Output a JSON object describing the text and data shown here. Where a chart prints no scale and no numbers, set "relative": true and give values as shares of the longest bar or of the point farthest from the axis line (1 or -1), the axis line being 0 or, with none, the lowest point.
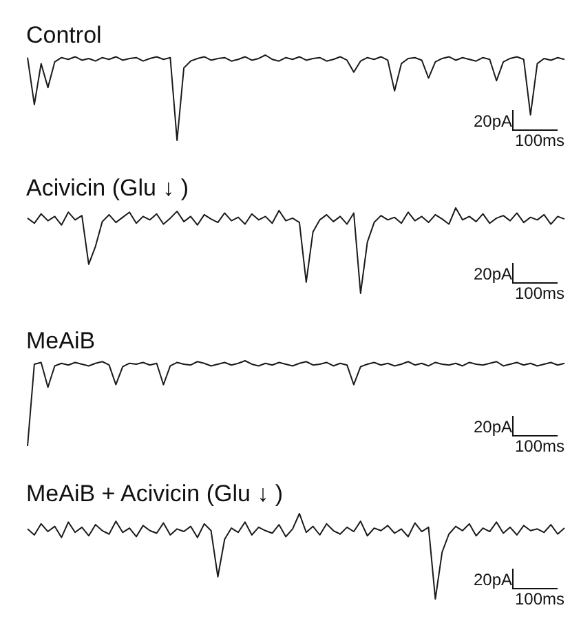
{
  "chart_data": [
    {
      "type": "line",
      "title": "Control",
      "relative": true,
      "annotations": [
        "20pA",
        "100ms"
      ],
      "categories": [
        null,
        null,
        null,
        null,
        null,
        null,
        null,
        null,
        null,
        null,
        null,
        null,
        null,
        null,
        null,
        null,
        null,
        null,
        null,
        null,
        null,
        null,
        null,
        null,
        null,
        null,
        null,
        null,
        null,
        null,
        null,
        null,
        null,
        null,
        null,
        null,
        null,
        null,
        null,
        null,
        null,
        null,
        null,
        null,
        null,
        null,
        null,
        null,
        null,
        null,
        null,
        null,
        null,
        null,
        null,
        null,
        null,
        null,
        null,
        null,
        null,
        null,
        null,
        null,
        null,
        null,
        null,
        null,
        null,
        null,
        null,
        null,
        null,
        null,
        null,
        null,
        null,
        null,
        null,
        null
      ],
      "series": [
        {
          "color": "#1a1a1a",
          "values": [
            0.97,
            0.42,
            0.9,
            0.62,
            0.92,
            0.97,
            0.95,
            0.98,
            0.94,
            0.96,
            0.93,
            0.97,
            0.95,
            0.98,
            0.94,
            0.96,
            0.97,
            0.93,
            0.96,
            0.98,
            0.95,
            0.97,
            0,
            0.85,
            0.93,
            0.96,
            0.98,
            0.94,
            0.96,
            0.97,
            0.93,
            0.95,
            0.98,
            0.94,
            0.96,
            1,
            0.95,
            0.93,
            0.97,
            0.95,
            0.98,
            0.94,
            0.96,
            0.97,
            0.93,
            0.95,
            0.98,
            0.94,
            0.8,
            0.93,
            0.97,
            0.95,
            0.98,
            0.94,
            0.58,
            0.9,
            0.96,
            0.97,
            0.94,
            0.73,
            0.92,
            0.96,
            0.98,
            0.94,
            0.97,
            0.95,
            0.93,
            0.97,
            0.95,
            0.7,
            0.92,
            0.96,
            0.98,
            0.95,
            0.3,
            0.9,
            0.96,
            0.94,
            0.97,
            0.95
          ]
        }
      ]
    },
    {
      "type": "line",
      "title": "Acivicin (Glu ↓ )",
      "relative": true,
      "annotations": [
        "20pA",
        "100ms"
      ],
      "categories": [
        null,
        null,
        null,
        null,
        null,
        null,
        null,
        null,
        null,
        null,
        null,
        null,
        null,
        null,
        null,
        null,
        null,
        null,
        null,
        null,
        null,
        null,
        null,
        null,
        null,
        null,
        null,
        null,
        null,
        null,
        null,
        null,
        null,
        null,
        null,
        null,
        null,
        null,
        null,
        null,
        null,
        null,
        null,
        null,
        null,
        null,
        null,
        null,
        null,
        null,
        null,
        null,
        null,
        null,
        null,
        null,
        null,
        null,
        null,
        null,
        null,
        null,
        null,
        null,
        null,
        null,
        null,
        null,
        null,
        null,
        null,
        null,
        null,
        null,
        null,
        null,
        null,
        null,
        null,
        null
      ],
      "series": [
        {
          "color": "#1a1a1a",
          "values": [
            0.88,
            0.82,
            0.93,
            0.85,
            0.9,
            0.8,
            0.95,
            0.86,
            0.91,
            0.34,
            0.55,
            0.84,
            0.92,
            0.83,
            0.89,
            0.95,
            0.82,
            0.9,
            0.86,
            0.93,
            0.81,
            0.88,
            0.96,
            0.84,
            0.9,
            0.8,
            0.92,
            0.87,
            0.83,
            0.94,
            0.85,
            0.89,
            0.81,
            0.93,
            0.86,
            0.9,
            0.82,
            0.97,
            0.85,
            0.88,
            0.83,
            0.13,
            0.72,
            0.86,
            0.92,
            0.84,
            0.9,
            0.81,
            0.94,
            0,
            0.6,
            0.83,
            0.91,
            0.86,
            0.89,
            0.82,
            0.95,
            0.85,
            0.9,
            0.83,
            0.92,
            0.87,
            0.81,
            1,
            0.86,
            0.9,
            0.84,
            0.93,
            0.82,
            0.88,
            0.91,
            0.85,
            0.94,
            0.83,
            0.89,
            0.86,
            0.92,
            0.81,
            0.9,
            0.87
          ]
        }
      ]
    },
    {
      "type": "line",
      "title": "MeAiB",
      "relative": true,
      "annotations": [
        "20pA",
        "100ms"
      ],
      "categories": [
        null,
        null,
        null,
        null,
        null,
        null,
        null,
        null,
        null,
        null,
        null,
        null,
        null,
        null,
        null,
        null,
        null,
        null,
        null,
        null,
        null,
        null,
        null,
        null,
        null,
        null,
        null,
        null,
        null,
        null,
        null,
        null,
        null,
        null,
        null,
        null,
        null,
        null,
        null,
        null,
        null,
        null,
        null,
        null,
        null,
        null,
        null,
        null,
        null,
        null,
        null,
        null,
        null,
        null,
        null,
        null,
        null,
        null,
        null,
        null,
        null,
        null,
        null,
        null,
        null,
        null,
        null,
        null,
        null,
        null,
        null,
        null,
        null,
        null,
        null,
        null,
        null,
        null,
        null,
        null
      ],
      "series": [
        {
          "color": "#1a1a1a",
          "values": [
            0,
            0.96,
            0.98,
            0.69,
            0.94,
            0.97,
            0.95,
            0.98,
            0.96,
            0.94,
            0.97,
            0.99,
            0.95,
            0.72,
            0.93,
            0.97,
            0.96,
            0.98,
            0.95,
            0.97,
            0.72,
            0.94,
            0.98,
            0.96,
            0.95,
            0.99,
            0.97,
            0.94,
            0.96,
            0.98,
            0.95,
            0.97,
            1,
            0.96,
            0.94,
            0.97,
            0.95,
            0.98,
            0.96,
            0.94,
            0.97,
            0.99,
            0.95,
            0.96,
            0.98,
            0.94,
            0.97,
            0.95,
            0.72,
            0.93,
            0.96,
            0.98,
            0.95,
            0.97,
            0.94,
            0.96,
            0.99,
            0.95,
            0.97,
            0.94,
            0.98,
            0.96,
            0.95,
            0.97,
            0.94,
            0.98,
            0.96,
            0.95,
            0.97,
            0.99,
            0.94,
            0.96,
            0.98,
            0.95,
            0.97,
            0.94,
            0.96,
            0.98,
            0.95,
            0.97
          ]
        }
      ]
    },
    {
      "type": "line",
      "title": "MeAiB + Acivicin (Glu ↓ )",
      "relative": true,
      "annotations": [
        "20pA",
        "100ms"
      ],
      "categories": [
        null,
        null,
        null,
        null,
        null,
        null,
        null,
        null,
        null,
        null,
        null,
        null,
        null,
        null,
        null,
        null,
        null,
        null,
        null,
        null,
        null,
        null,
        null,
        null,
        null,
        null,
        null,
        null,
        null,
        null,
        null,
        null,
        null,
        null,
        null,
        null,
        null,
        null,
        null,
        null,
        null,
        null,
        null,
        null,
        null,
        null,
        null,
        null,
        null,
        null,
        null,
        null,
        null,
        null,
        null,
        null,
        null,
        null,
        null,
        null,
        null,
        null,
        null,
        null,
        null,
        null,
        null,
        null,
        null,
        null,
        null,
        null,
        null,
        null,
        null,
        null,
        null,
        null,
        null,
        null
      ],
      "series": [
        {
          "color": "#1a1a1a",
          "values": [
            0.82,
            0.75,
            0.88,
            0.79,
            0.85,
            0.72,
            0.9,
            0.78,
            0.84,
            0.74,
            0.87,
            0.8,
            0.76,
            0.91,
            0.78,
            0.83,
            0.73,
            0.86,
            0.8,
            0.77,
            0.89,
            0.75,
            0.82,
            0.79,
            0.85,
            0.72,
            0.88,
            0.8,
            0.26,
            0.7,
            0.83,
            0.78,
            0.9,
            0.75,
            0.84,
            0.8,
            0.77,
            0.87,
            0.73,
            0.82,
            1,
            0.78,
            0.85,
            0.75,
            0.88,
            0.8,
            0.76,
            0.84,
            0.79,
            0.91,
            0.74,
            0.83,
            0.8,
            0.86,
            0.77,
            0.82,
            0.73,
            0.89,
            0.79,
            0.84,
            0,
            0.55,
            0.76,
            0.85,
            0.8,
            0.88,
            0.74,
            0.83,
            0.79,
            0.9,
            0.77,
            0.84,
            0.75,
            0.86,
            0.8,
            0.82,
            0.78,
            0.87,
            0.76,
            0.83
          ]
        }
      ]
    }
  ]
}
